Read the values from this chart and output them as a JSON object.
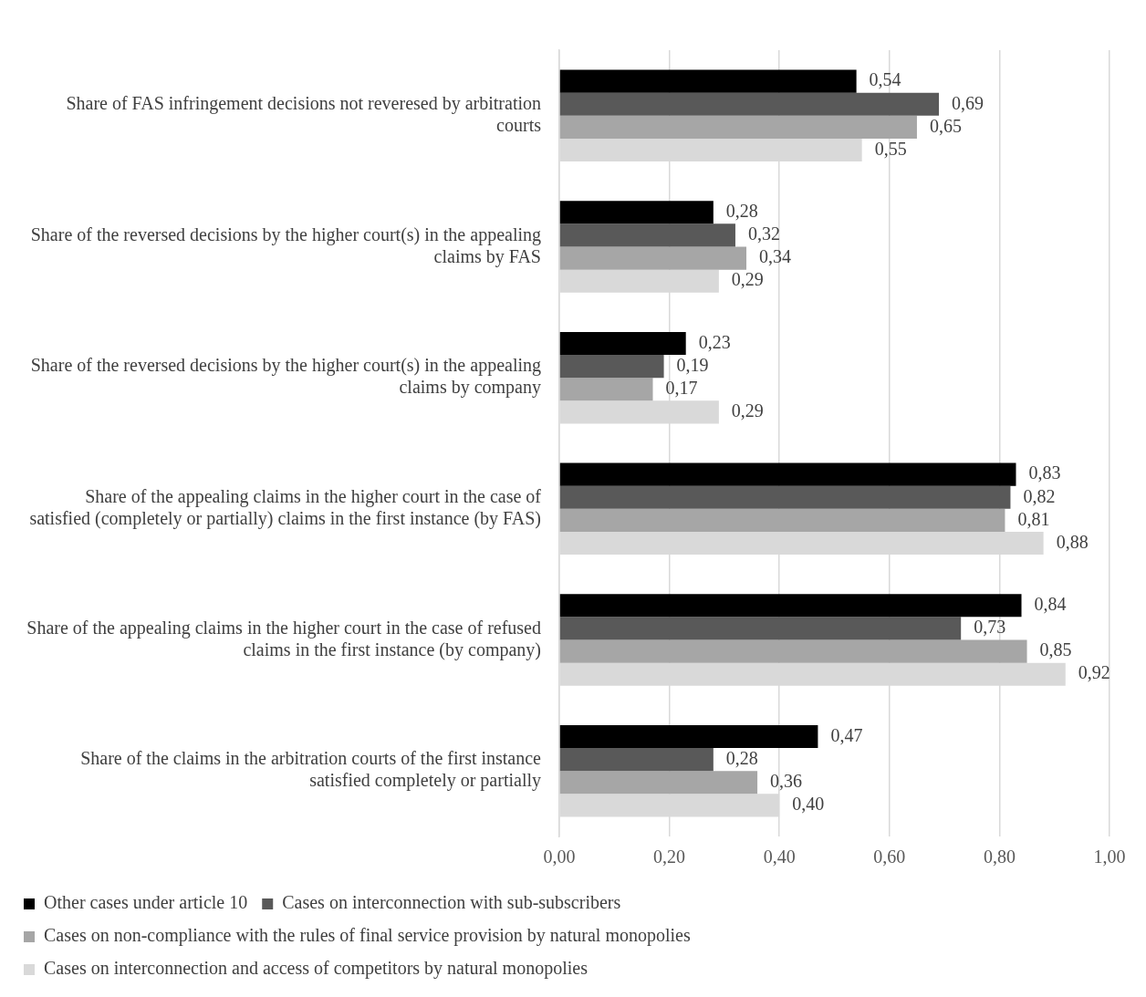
{
  "chart_data": {
    "type": "bar",
    "orientation": "horizontal",
    "categories": [
      "Share of FAS infringement decisions not reveresed by arbitration courts",
      "Share of the reversed decisions by the higher court(s) in the appealing claims by FAS",
      "Share of the reversed decisions by the higher court(s) in the appealing claims by company",
      "Share of the appealing claims in the higher court in the case of satisfied (completely or partially) claims in the first instance (by FAS)",
      "Share of the appealing claims in the higher court in the case of refused claims in the first instance (by company)",
      "Share of the claims in the arbitration courts of the first instance satisfied completely or partially"
    ],
    "series": [
      {
        "name": "Other cases under article 10",
        "color": "#000000",
        "values": [
          0.54,
          0.28,
          0.23,
          0.83,
          0.84,
          0.47
        ],
        "value_labels": [
          "0,54",
          "0,28",
          "0,23",
          "0,83",
          "0,84",
          "0,47"
        ]
      },
      {
        "name": "Cases on interconnection with sub-subscribers",
        "color": "#595959",
        "values": [
          0.69,
          0.32,
          0.19,
          0.82,
          0.73,
          0.28
        ],
        "value_labels": [
          "0,69",
          "0,32",
          "0,19",
          "0,82",
          "0,73",
          "0,28"
        ]
      },
      {
        "name": "Cases on non-compliance with the rules of final service provision by natural monopolies",
        "color": "#a6a6a6",
        "values": [
          0.65,
          0.34,
          0.17,
          0.81,
          0.85,
          0.36
        ],
        "value_labels": [
          "0,65",
          "0,34",
          "0,17",
          "0,81",
          "0,85",
          "0,36"
        ]
      },
      {
        "name": "Cases on interconnection and access of competitors by natural monopolies",
        "color": "#d9d9d9",
        "values": [
          0.55,
          0.29,
          0.29,
          0.88,
          0.92,
          0.4
        ],
        "value_labels": [
          "0,55",
          "0,29",
          "0,29",
          "0,88",
          "0,92",
          "0,40"
        ]
      }
    ],
    "xlim": [
      0,
      1
    ],
    "xticks": [
      {
        "value": 0,
        "label": "0,00"
      },
      {
        "value": 0.2,
        "label": "0,20"
      },
      {
        "value": 0.4,
        "label": "0,40"
      },
      {
        "value": 0.6,
        "label": "0,60"
      },
      {
        "value": 0.8,
        "label": "0,80"
      },
      {
        "value": 1,
        "label": "1,00"
      }
    ],
    "grid": "x",
    "legend": "bottom"
  }
}
